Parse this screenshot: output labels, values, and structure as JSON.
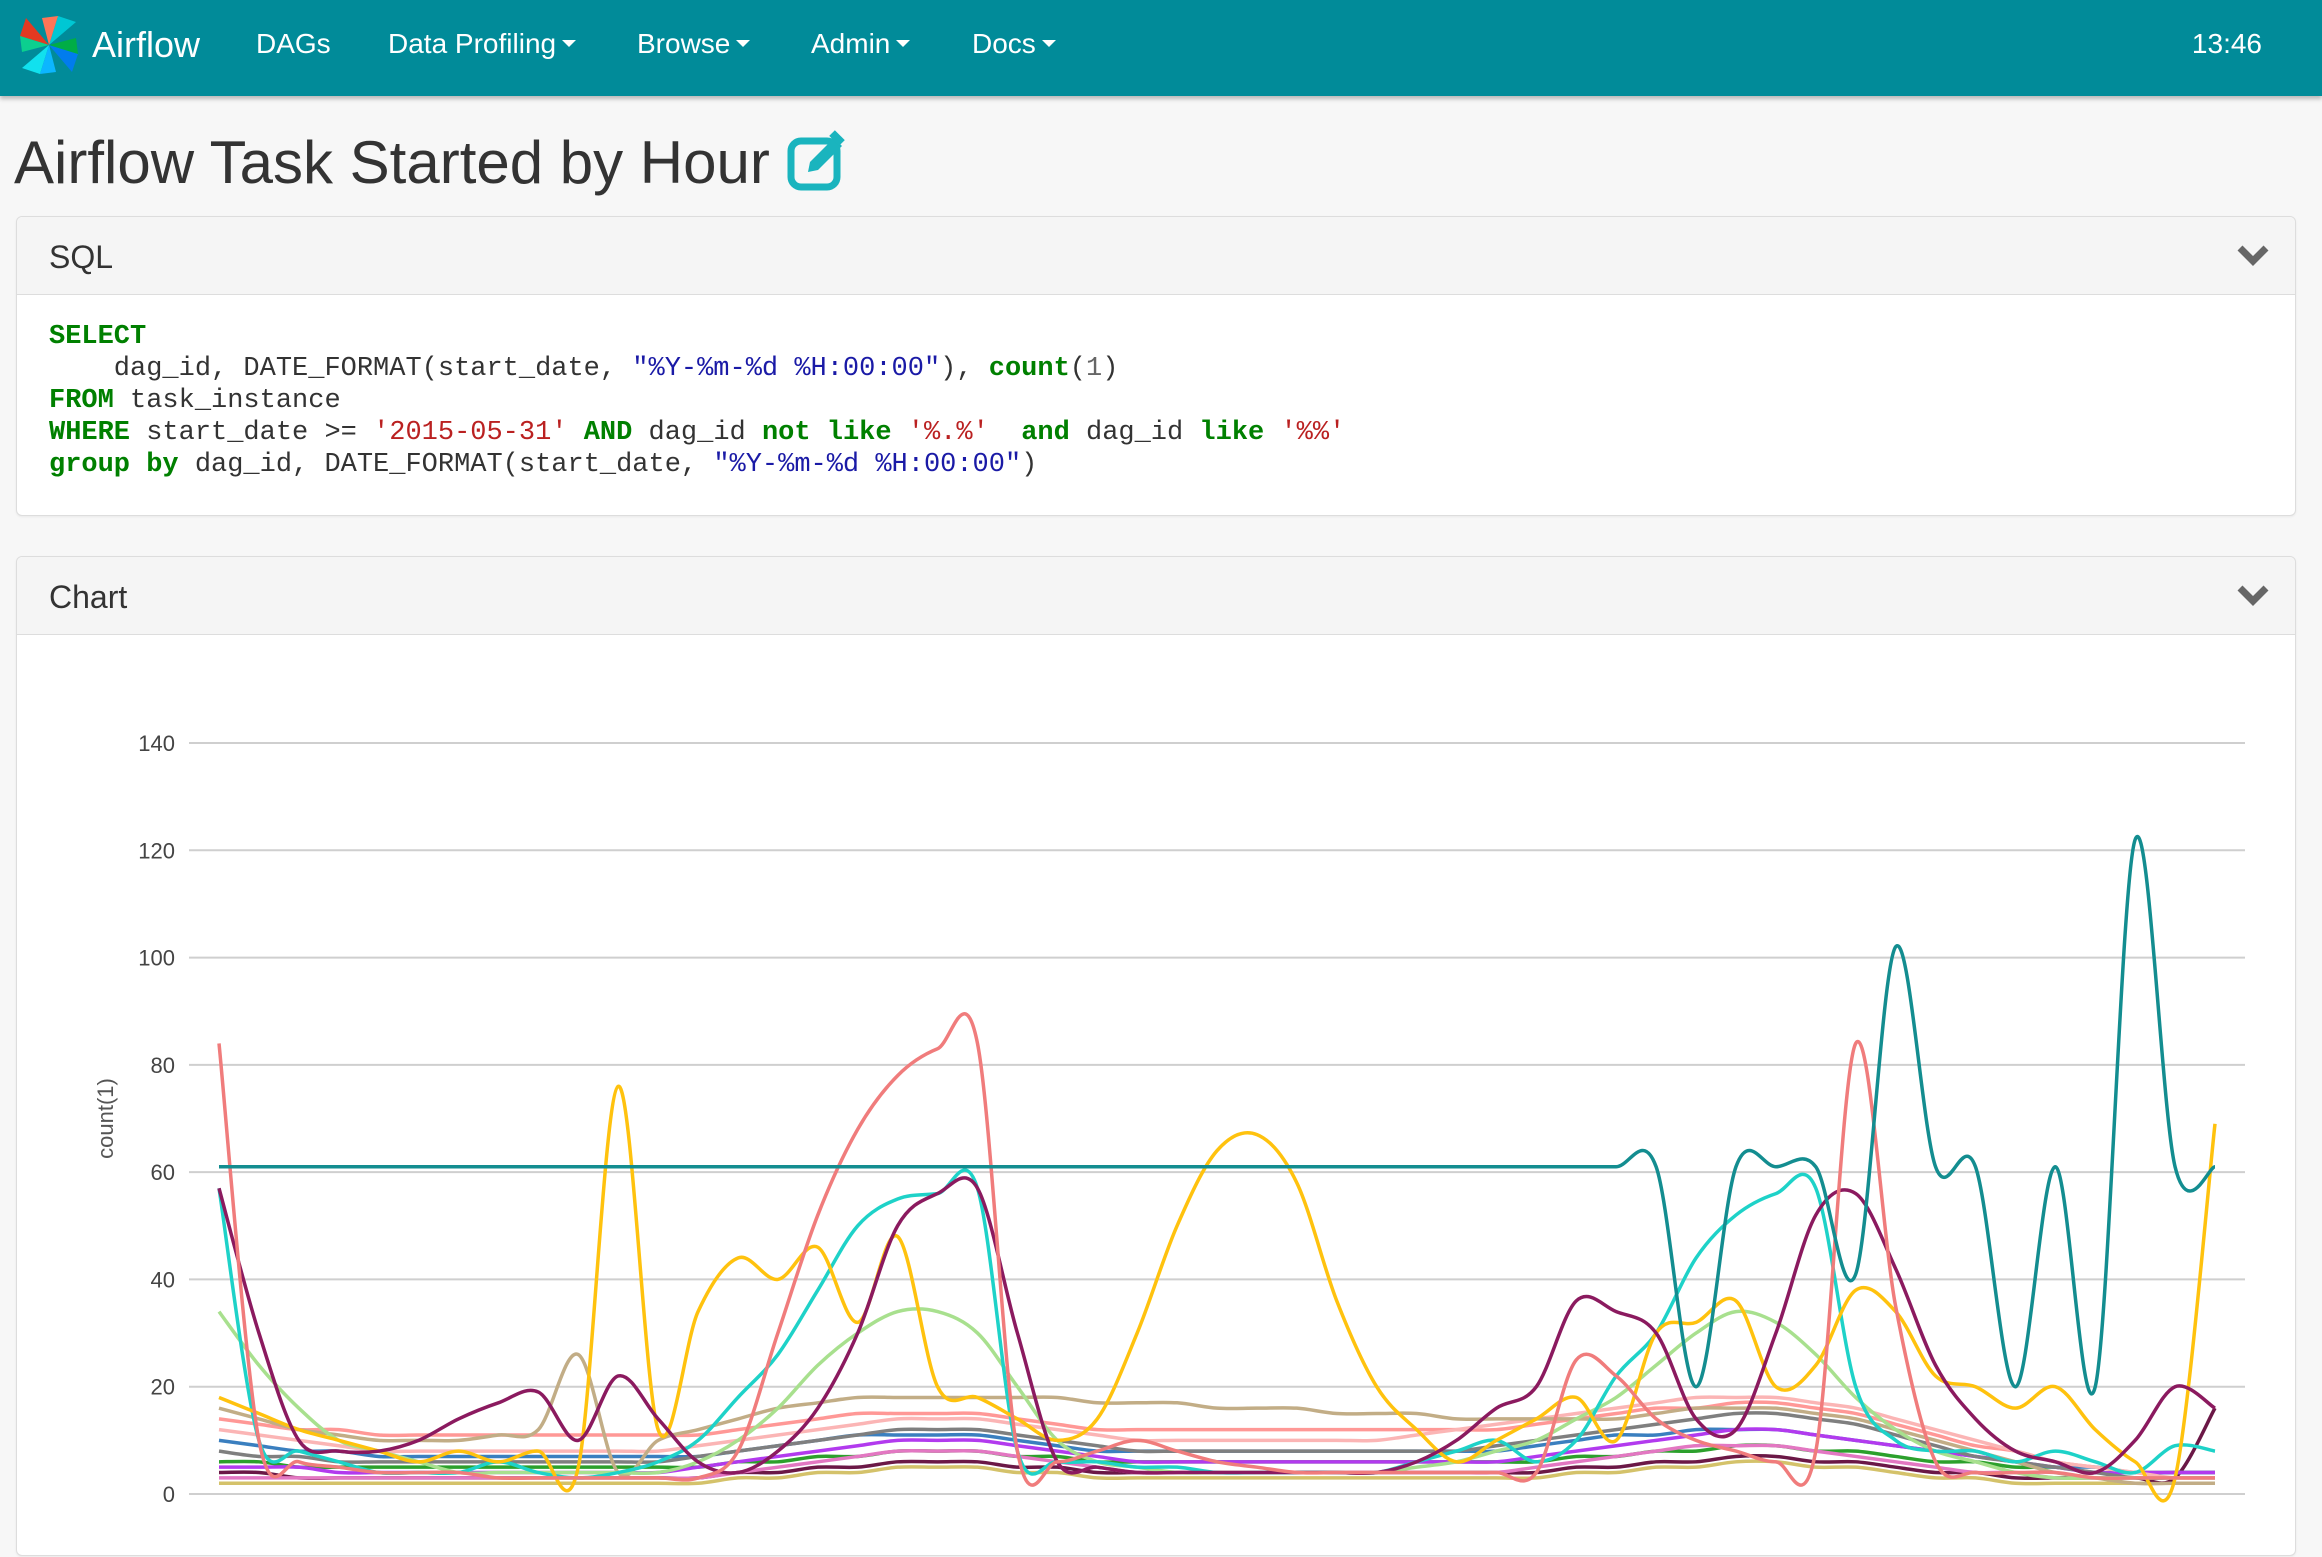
{
  "navbar": {
    "brand": "Airflow",
    "items": [
      {
        "label": "DAGs",
        "dropdown": false
      },
      {
        "label": "Data Profiling",
        "dropdown": true
      },
      {
        "label": "Browse",
        "dropdown": true
      },
      {
        "label": "Admin",
        "dropdown": true
      },
      {
        "label": "Docs",
        "dropdown": true
      }
    ],
    "clock": "13:46",
    "bg_color": "#018b99"
  },
  "page": {
    "title": "Airflow Task Started by Hour",
    "edit_icon": "edit-icon"
  },
  "sql_panel": {
    "title": "SQL",
    "code_lines": [
      "SELECT",
      "    dag_id, DATE_FORMAT(start_date, \"%Y-%m-%d %H:00:00\"), count(1)",
      "FROM task_instance",
      "WHERE start_date >= '2015-05-31' AND dag_id not like '%.%'  and dag_id like '%%'",
      "group by dag_id, DATE_FORMAT(start_date, \"%Y-%m-%d %H:00:00\")"
    ]
  },
  "chart_panel": {
    "title": "Chart"
  },
  "chart_data": {
    "type": "line",
    "ylabel": "count(1)",
    "xlabel": "",
    "ylim": [
      0,
      140
    ],
    "y_ticks": [
      0,
      20,
      40,
      60,
      80,
      100,
      120,
      140
    ],
    "grid": true,
    "x": [
      0,
      1,
      2,
      3,
      4,
      5,
      6,
      7,
      8,
      9,
      10,
      11,
      12,
      13,
      14,
      15,
      16,
      17,
      18,
      19,
      20,
      21,
      22,
      23,
      24,
      25,
      26,
      27,
      28,
      29,
      30,
      31,
      32,
      33,
      34,
      35,
      36,
      37,
      38,
      39,
      40,
      41,
      42,
      43,
      44,
      45,
      46,
      47,
      48,
      49,
      50
    ],
    "series": [
      {
        "color": "#138d90",
        "values": [
          61,
          61,
          61,
          61,
          61,
          61,
          61,
          61,
          61,
          61,
          61,
          61,
          61,
          61,
          61,
          61,
          61,
          61,
          61,
          61,
          61,
          61,
          61,
          61,
          61,
          61,
          61,
          61,
          61,
          61,
          61,
          61,
          61,
          61,
          61,
          61,
          61,
          20,
          61,
          61,
          61,
          41,
          102,
          61,
          61,
          20,
          61,
          20,
          122,
          61,
          61
        ]
      },
      {
        "color": "#f07c7c",
        "values": [
          84,
          10,
          6,
          5,
          4,
          4,
          4,
          3,
          3,
          3,
          3,
          3,
          3,
          8,
          30,
          52,
          68,
          78,
          83,
          84,
          8,
          6,
          8,
          10,
          8,
          6,
          5,
          4,
          4,
          4,
          4,
          4,
          4,
          4,
          25,
          22,
          14,
          10,
          8,
          6,
          8,
          84,
          35,
          6,
          4,
          4,
          4,
          3,
          3,
          3,
          3
        ]
      },
      {
        "color": "#8b1a5f",
        "values": [
          57,
          30,
          10,
          8,
          8,
          10,
          14,
          17,
          19,
          10,
          22,
          14,
          6,
          4,
          8,
          16,
          30,
          50,
          56,
          57,
          30,
          6,
          5,
          4,
          4,
          4,
          4,
          4,
          4,
          4,
          6,
          10,
          16,
          20,
          36,
          34,
          30,
          14,
          12,
          30,
          52,
          56,
          42,
          24,
          14,
          8,
          6,
          4,
          10,
          20,
          16
        ]
      },
      {
        "color": "#ffc20e",
        "values": [
          18,
          15,
          12,
          10,
          8,
          6,
          8,
          6,
          8,
          5,
          76,
          12,
          34,
          44,
          40,
          46,
          32,
          48,
          20,
          18,
          14,
          10,
          14,
          30,
          50,
          64,
          67,
          58,
          36,
          20,
          12,
          6,
          10,
          14,
          18,
          10,
          30,
          32,
          36,
          20,
          24,
          38,
          34,
          22,
          20,
          16,
          20,
          12,
          6,
          3,
          69
        ]
      },
      {
        "color": "#1ed2c8",
        "values": [
          57,
          10,
          8,
          6,
          4,
          4,
          4,
          6,
          4,
          3,
          4,
          6,
          10,
          18,
          26,
          38,
          50,
          55,
          56,
          57,
          8,
          6,
          6,
          5,
          5,
          4,
          4,
          4,
          4,
          4,
          6,
          8,
          10,
          6,
          10,
          22,
          30,
          44,
          52,
          56,
          57,
          20,
          10,
          8,
          8,
          6,
          8,
          6,
          4,
          9,
          8
        ]
      },
      {
        "color": "#a8e08e",
        "values": [
          34,
          24,
          16,
          10,
          8,
          6,
          4,
          4,
          4,
          4,
          4,
          4,
          6,
          10,
          16,
          24,
          30,
          34,
          34,
          30,
          20,
          10,
          6,
          5,
          4,
          4,
          4,
          4,
          4,
          4,
          5,
          6,
          8,
          10,
          14,
          18,
          24,
          30,
          34,
          32,
          26,
          18,
          12,
          8,
          6,
          4,
          3,
          3,
          3,
          3,
          3
        ]
      },
      {
        "color": "#c2ad86",
        "values": [
          16,
          14,
          12,
          11,
          10,
          10,
          10,
          11,
          12,
          26,
          4,
          10,
          12,
          14,
          16,
          17,
          18,
          18,
          18,
          18,
          18,
          18,
          17,
          17,
          17,
          16,
          16,
          16,
          15,
          15,
          15,
          14,
          14,
          14,
          14,
          14,
          15,
          16,
          16,
          16,
          15,
          14,
          12,
          10,
          8,
          6,
          4,
          3,
          2,
          2,
          2
        ]
      },
      {
        "color": "#fbb5b5",
        "values": [
          12,
          11,
          10,
          9,
          8,
          8,
          8,
          8,
          8,
          8,
          8,
          8,
          9,
          10,
          11,
          12,
          13,
          14,
          14,
          14,
          13,
          12,
          11,
          10,
          10,
          10,
          10,
          10,
          10,
          10,
          11,
          12,
          13,
          14,
          15,
          16,
          17,
          18,
          18,
          18,
          17,
          16,
          14,
          12,
          10,
          8,
          6,
          5,
          4,
          3,
          3
        ]
      },
      {
        "color": "#7f7f7f",
        "values": [
          8,
          7,
          7,
          6,
          6,
          6,
          6,
          6,
          6,
          6,
          6,
          6,
          7,
          8,
          9,
          10,
          11,
          12,
          12,
          12,
          11,
          10,
          9,
          8,
          8,
          8,
          8,
          8,
          8,
          8,
          8,
          8,
          9,
          10,
          11,
          12,
          13,
          14,
          15,
          15,
          14,
          13,
          11,
          9,
          7,
          6,
          5,
          4,
          3,
          3,
          3
        ]
      },
      {
        "color": "#b23aee",
        "values": [
          5,
          5,
          5,
          4,
          4,
          4,
          4,
          4,
          4,
          4,
          4,
          4,
          5,
          6,
          7,
          8,
          9,
          10,
          10,
          10,
          9,
          8,
          7,
          6,
          6,
          6,
          6,
          6,
          6,
          6,
          6,
          6,
          6,
          7,
          8,
          9,
          10,
          11,
          12,
          12,
          11,
          10,
          9,
          8,
          7,
          6,
          5,
          4,
          4,
          4,
          4
        ]
      },
      {
        "color": "#3a7fbf",
        "values": [
          10,
          9,
          8,
          8,
          7,
          7,
          7,
          7,
          7,
          7,
          7,
          7,
          7,
          8,
          9,
          10,
          11,
          11,
          11,
          11,
          10,
          9,
          8,
          8,
          8,
          8,
          8,
          8,
          8,
          8,
          8,
          8,
          8,
          9,
          10,
          11,
          11,
          12,
          12,
          12,
          11,
          10,
          9,
          8,
          7,
          6,
          5,
          5,
          4,
          4,
          4
        ]
      },
      {
        "color": "#e377c2",
        "values": [
          3,
          3,
          3,
          3,
          3,
          3,
          3,
          3,
          3,
          3,
          3,
          3,
          3,
          4,
          5,
          6,
          7,
          8,
          8,
          8,
          7,
          6,
          5,
          4,
          4,
          4,
          4,
          4,
          4,
          4,
          4,
          4,
          4,
          5,
          6,
          7,
          8,
          9,
          9,
          9,
          8,
          7,
          6,
          5,
          4,
          4,
          3,
          3,
          3,
          3,
          3
        ]
      },
      {
        "color": "#2ca02c",
        "values": [
          6,
          6,
          5,
          5,
          5,
          5,
          5,
          5,
          5,
          5,
          5,
          5,
          5,
          6,
          6,
          7,
          7,
          8,
          8,
          8,
          7,
          7,
          6,
          6,
          6,
          6,
          6,
          6,
          6,
          6,
          6,
          6,
          6,
          6,
          7,
          7,
          8,
          8,
          9,
          9,
          8,
          8,
          7,
          6,
          6,
          5,
          5,
          4,
          4,
          4,
          4
        ]
      },
      {
        "color": "#ff9896",
        "values": [
          14,
          13,
          12,
          12,
          11,
          11,
          11,
          11,
          11,
          11,
          11,
          11,
          11,
          12,
          13,
          14,
          15,
          15,
          15,
          15,
          14,
          13,
          12,
          12,
          12,
          12,
          12,
          12,
          12,
          12,
          12,
          12,
          12,
          13,
          14,
          15,
          16,
          16,
          17,
          17,
          16,
          15,
          13,
          11,
          9,
          8,
          6,
          5,
          4,
          4,
          4
        ]
      },
      {
        "color": "#6b1846",
        "values": [
          4,
          4,
          3,
          3,
          3,
          3,
          3,
          3,
          3,
          3,
          3,
          3,
          3,
          4,
          4,
          5,
          5,
          6,
          6,
          6,
          5,
          5,
          4,
          4,
          4,
          4,
          4,
          4,
          4,
          4,
          4,
          4,
          4,
          4,
          5,
          5,
          6,
          6,
          7,
          7,
          6,
          6,
          5,
          4,
          4,
          3,
          3,
          3,
          3,
          3,
          16
        ]
      },
      {
        "color": "#d4c26a",
        "values": [
          2,
          2,
          2,
          2,
          2,
          2,
          2,
          2,
          2,
          2,
          2,
          2,
          2,
          3,
          3,
          4,
          4,
          5,
          5,
          5,
          4,
          4,
          3,
          3,
          3,
          3,
          3,
          3,
          3,
          3,
          3,
          3,
          3,
          3,
          4,
          4,
          5,
          5,
          6,
          6,
          5,
          5,
          4,
          3,
          3,
          2,
          2,
          2,
          2,
          2,
          2
        ]
      }
    ]
  }
}
